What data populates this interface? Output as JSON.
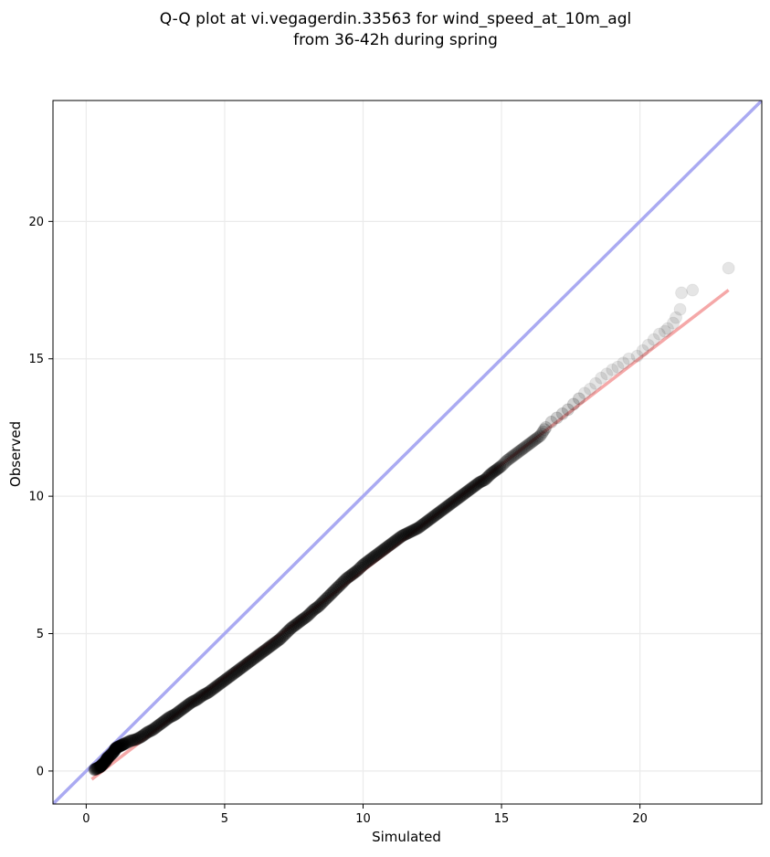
{
  "chart_data": {
    "type": "scatter",
    "title_line1": "Q-Q plot at vi.vegagerdin.33563 for wind_speed_at_10m_agl",
    "title_line2": "from 36-42h during spring",
    "xlabel": "Simulated",
    "ylabel": "Observed",
    "xlim": [
      -1.2,
      24.4
    ],
    "ylim": [
      -1.2,
      24.4
    ],
    "x_ticks": [
      0,
      5,
      10,
      15,
      20
    ],
    "y_ticks": [
      0,
      5,
      10,
      15,
      20
    ],
    "x_tick_labels": [
      "0",
      "5",
      "10",
      "15",
      "20"
    ],
    "y_tick_labels": [
      "0",
      "5",
      "10",
      "15",
      "20"
    ],
    "grid": true,
    "colors": {
      "points": "#000000",
      "identity_line": "#aaaaf2",
      "fit_line": "#f5a8a8",
      "grid": "#ebebeb"
    },
    "identity_line": {
      "x": [
        -1.2,
        24.4
      ],
      "y": [
        -1.2,
        24.4
      ]
    },
    "fit_line": {
      "x": [
        0.2,
        23.2
      ],
      "y": [
        -0.3,
        17.5
      ]
    },
    "series": [
      {
        "values": [
          [
            0.3,
            0.05
          ],
          [
            0.4,
            0.1
          ],
          [
            0.5,
            0.15
          ],
          [
            0.55,
            0.2
          ],
          [
            0.6,
            0.25
          ],
          [
            0.7,
            0.35
          ],
          [
            0.75,
            0.45
          ],
          [
            0.8,
            0.5
          ],
          [
            0.9,
            0.6
          ],
          [
            1.0,
            0.7
          ],
          [
            1.05,
            0.8
          ],
          [
            1.1,
            0.85
          ],
          [
            1.2,
            0.9
          ],
          [
            1.3,
            0.95
          ],
          [
            1.4,
            1.0
          ],
          [
            1.6,
            1.1
          ],
          [
            1.8,
            1.15
          ],
          [
            2.0,
            1.25
          ],
          [
            2.2,
            1.4
          ],
          [
            2.4,
            1.5
          ],
          [
            2.6,
            1.65
          ],
          [
            2.8,
            1.8
          ],
          [
            3.0,
            1.95
          ],
          [
            3.2,
            2.05
          ],
          [
            3.4,
            2.2
          ],
          [
            3.6,
            2.35
          ],
          [
            3.8,
            2.5
          ],
          [
            4.0,
            2.6
          ],
          [
            4.2,
            2.75
          ],
          [
            4.4,
            2.85
          ],
          [
            4.6,
            3.0
          ],
          [
            4.8,
            3.15
          ],
          [
            5.0,
            3.3
          ],
          [
            5.2,
            3.45
          ],
          [
            5.4,
            3.6
          ],
          [
            5.6,
            3.75
          ],
          [
            5.8,
            3.9
          ],
          [
            6.0,
            4.05
          ],
          [
            6.2,
            4.2
          ],
          [
            6.4,
            4.35
          ],
          [
            6.6,
            4.5
          ],
          [
            6.8,
            4.65
          ],
          [
            7.0,
            4.8
          ],
          [
            7.2,
            5.0
          ],
          [
            7.4,
            5.2
          ],
          [
            7.6,
            5.35
          ],
          [
            7.8,
            5.5
          ],
          [
            8.0,
            5.65
          ],
          [
            8.2,
            5.85
          ],
          [
            8.4,
            6.0
          ],
          [
            8.6,
            6.2
          ],
          [
            8.8,
            6.4
          ],
          [
            9.0,
            6.6
          ],
          [
            9.2,
            6.8
          ],
          [
            9.4,
            7.0
          ],
          [
            9.6,
            7.15
          ],
          [
            9.8,
            7.3
          ],
          [
            10.0,
            7.5
          ],
          [
            10.2,
            7.65
          ],
          [
            10.4,
            7.8
          ],
          [
            10.6,
            7.95
          ],
          [
            10.8,
            8.1
          ],
          [
            11.0,
            8.25
          ],
          [
            11.2,
            8.4
          ],
          [
            11.4,
            8.55
          ],
          [
            11.6,
            8.65
          ],
          [
            11.8,
            8.75
          ],
          [
            12.0,
            8.85
          ],
          [
            12.2,
            9.0
          ],
          [
            12.4,
            9.15
          ],
          [
            12.6,
            9.3
          ],
          [
            12.8,
            9.45
          ],
          [
            13.0,
            9.6
          ],
          [
            13.2,
            9.75
          ],
          [
            13.4,
            9.9
          ],
          [
            13.6,
            10.05
          ],
          [
            13.8,
            10.2
          ],
          [
            14.0,
            10.35
          ],
          [
            14.2,
            10.5
          ],
          [
            14.4,
            10.6
          ],
          [
            14.6,
            10.8
          ],
          [
            14.8,
            10.95
          ],
          [
            15.0,
            11.1
          ],
          [
            15.2,
            11.3
          ],
          [
            15.4,
            11.45
          ],
          [
            15.6,
            11.6
          ],
          [
            15.8,
            11.75
          ],
          [
            16.0,
            11.9
          ],
          [
            16.2,
            12.05
          ],
          [
            16.4,
            12.2
          ],
          [
            16.6,
            12.5
          ],
          [
            16.8,
            12.7
          ],
          [
            17.0,
            12.85
          ],
          [
            17.2,
            13.0
          ],
          [
            17.4,
            13.15
          ],
          [
            17.6,
            13.35
          ],
          [
            17.8,
            13.55
          ],
          [
            18.0,
            13.75
          ],
          [
            18.2,
            13.9
          ],
          [
            18.4,
            14.1
          ],
          [
            18.6,
            14.3
          ],
          [
            18.8,
            14.45
          ],
          [
            19.0,
            14.6
          ],
          [
            19.2,
            14.7
          ],
          [
            19.4,
            14.85
          ],
          [
            19.6,
            15.0
          ],
          [
            19.9,
            15.1
          ],
          [
            20.1,
            15.3
          ],
          [
            20.3,
            15.5
          ],
          [
            20.5,
            15.7
          ],
          [
            20.7,
            15.9
          ],
          [
            20.9,
            16.0
          ],
          [
            21.0,
            16.1
          ],
          [
            21.2,
            16.3
          ],
          [
            21.3,
            16.5
          ],
          [
            21.45,
            16.8
          ],
          [
            21.5,
            17.4
          ],
          [
            21.9,
            17.5
          ],
          [
            23.2,
            18.3
          ]
        ]
      }
    ]
  }
}
